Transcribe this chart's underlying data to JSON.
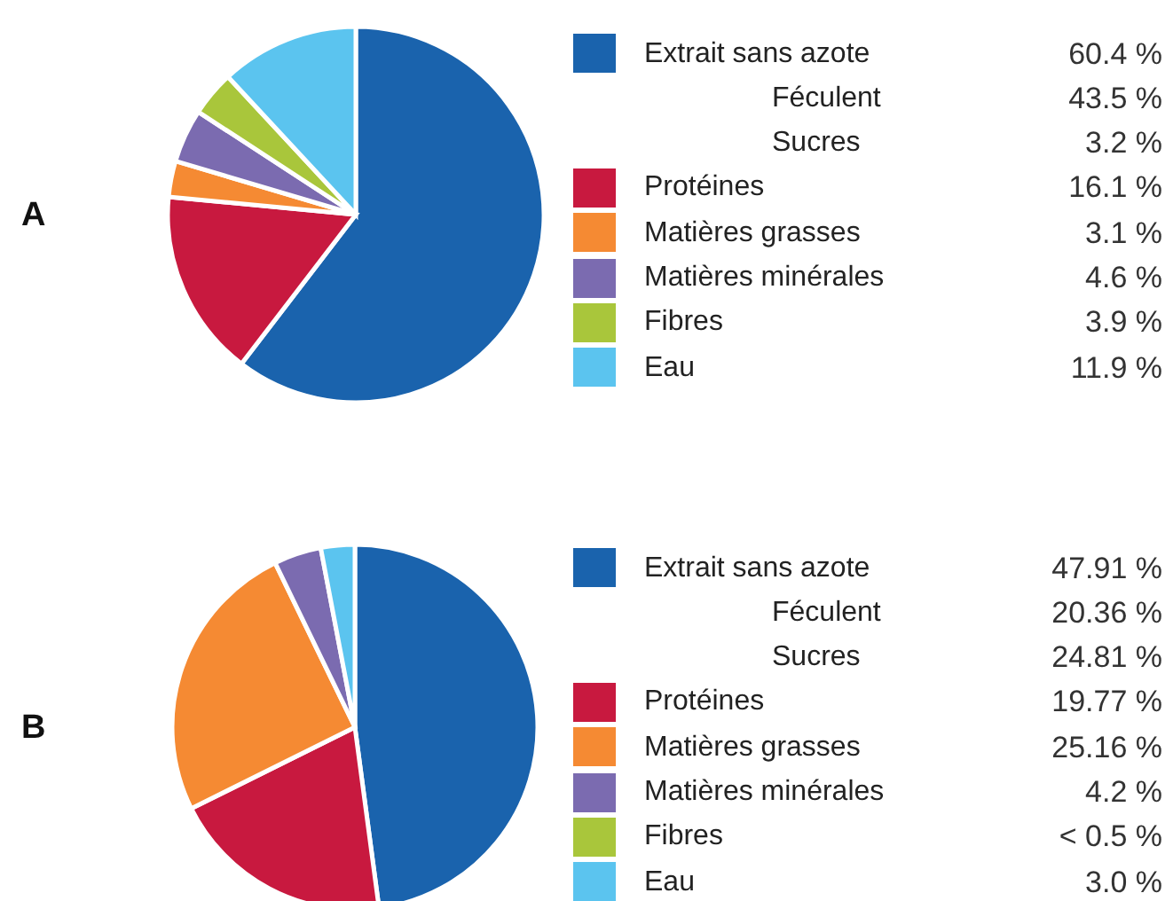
{
  "chart_data": [
    {
      "type": "pie",
      "title": "A",
      "categories": [
        "Extrait sans azote",
        "Féculent",
        "Sucres",
        "Protéines",
        "Matières grasses",
        "Matières minérales",
        "Fibres",
        "Eau"
      ],
      "values": [
        60.4,
        null,
        null,
        16.1,
        3.1,
        4.6,
        3.9,
        11.9
      ],
      "colors": [
        "#1a63ad",
        null,
        null,
        "#c8193f",
        "#f58a33",
        "#7b6bb0",
        "#a9c63b",
        "#5bc4ef"
      ],
      "value_labels": [
        "60.4 %",
        "43.5 %",
        "3.2 %",
        "16.1 %",
        "3.1 %",
        "4.6 %",
        "3.9 %",
        "11.9 %"
      ],
      "legend": "right"
    },
    {
      "type": "pie",
      "title": "B",
      "categories": [
        "Extrait sans azote",
        "Féculent",
        "Sucres",
        "Protéines",
        "Matières grasses",
        "Matières minérales",
        "Fibres",
        "Eau"
      ],
      "values": [
        47.91,
        null,
        null,
        19.77,
        25.16,
        4.2,
        null,
        3.0
      ],
      "colors": [
        "#1a63ad",
        null,
        null,
        "#c8193f",
        "#f58a33",
        "#7b6bb0",
        "#a9c63b",
        "#5bc4ef"
      ],
      "value_labels": [
        "47.91 %",
        "20.36 %",
        "24.81 %",
        "19.77 %",
        "25.16 %",
        "4.2 %",
        "< 0.5 %",
        "3.0 %"
      ],
      "legend": "right"
    }
  ]
}
